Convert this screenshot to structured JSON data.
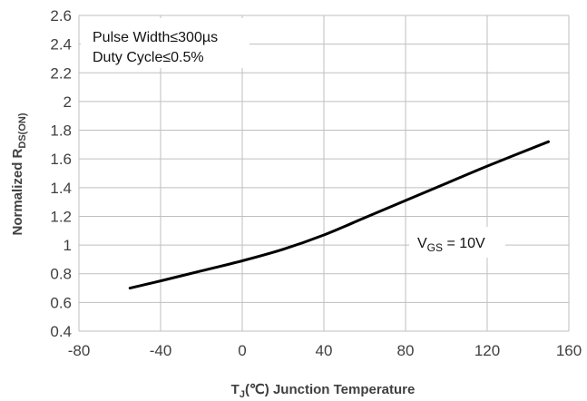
{
  "chart_data": {
    "type": "line",
    "title": "",
    "xlabel": {
      "main": "T",
      "sub": "J",
      "rest": "(℃) Junction Temperature"
    },
    "ylabel": {
      "main": "Normalized R",
      "sub": "DS(ON)"
    },
    "xlim": [
      -80,
      160
    ],
    "ylim": [
      0.4,
      2.6
    ],
    "x_ticks": [
      -80,
      -40,
      0,
      40,
      80,
      120,
      160
    ],
    "x_tick_labels": [
      "-80",
      "-40",
      "0",
      "40",
      "80",
      "120",
      "160"
    ],
    "y_ticks": [
      0.4,
      0.6,
      0.8,
      1.0,
      1.2,
      1.4,
      1.6,
      1.8,
      2.0,
      2.2,
      2.4,
      2.6
    ],
    "y_tick_labels": [
      "0.4",
      "0.6",
      "0.8",
      "1",
      "1.2",
      "1.4",
      "1.6",
      "1.8",
      "2",
      "2.2",
      "2.4",
      "2.6"
    ],
    "grid": true,
    "series": [
      {
        "name": "V_GS = 10V",
        "color": "#000000",
        "x": [
          -55,
          -40,
          -20,
          0,
          20,
          40,
          60,
          80,
          100,
          120,
          150
        ],
        "y": [
          0.7,
          0.75,
          0.82,
          0.89,
          0.97,
          1.07,
          1.19,
          1.31,
          1.43,
          1.55,
          1.72
        ]
      }
    ],
    "annotations": {
      "conditions": [
        "Pulse Width≤300µs",
        "Duty Cycle≤0.5%"
      ],
      "vgs": {
        "main": "V",
        "sub": "GS",
        "rest": " = 10V"
      }
    }
  },
  "colors": {
    "grid": "#bfbfbf",
    "text": "#404040",
    "line": "#000000",
    "background": "#ffffff"
  }
}
